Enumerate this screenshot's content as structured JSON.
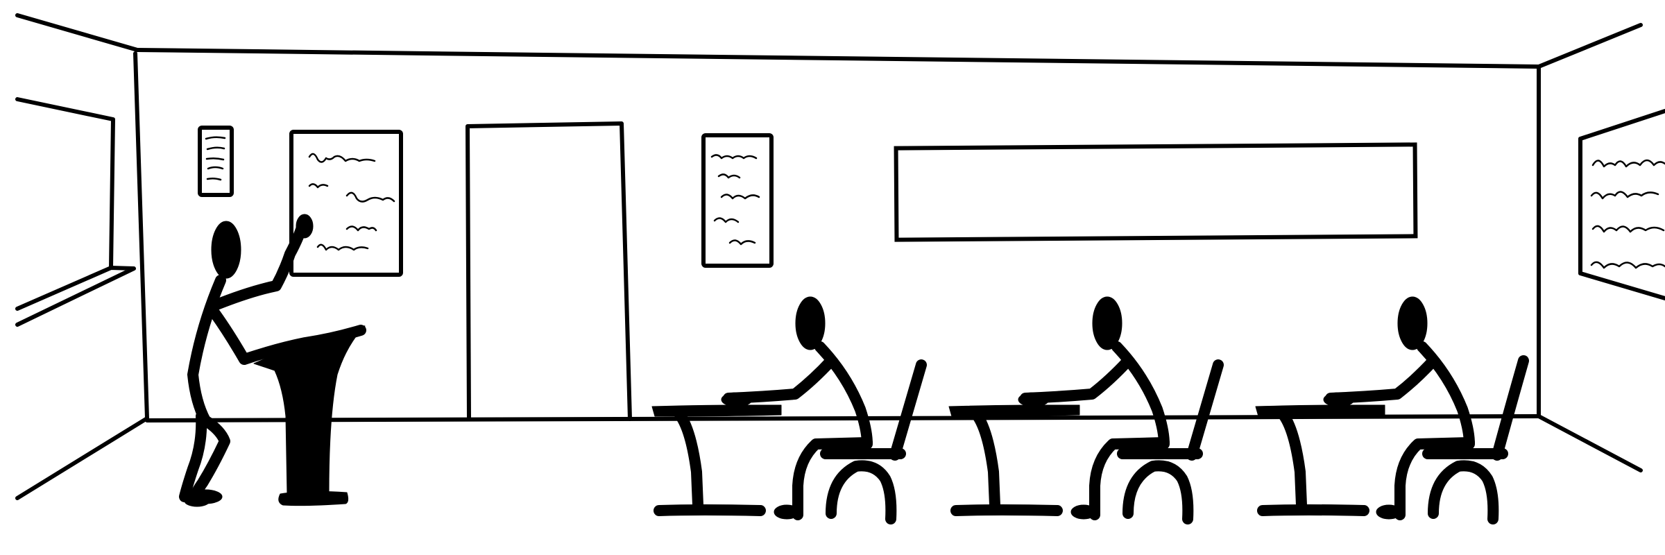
{
  "scene": {
    "description_free": true,
    "room": {
      "wall_color": "#ffffff",
      "line_color": "#000000"
    },
    "students_count": 3,
    "posters_count": 4
  }
}
